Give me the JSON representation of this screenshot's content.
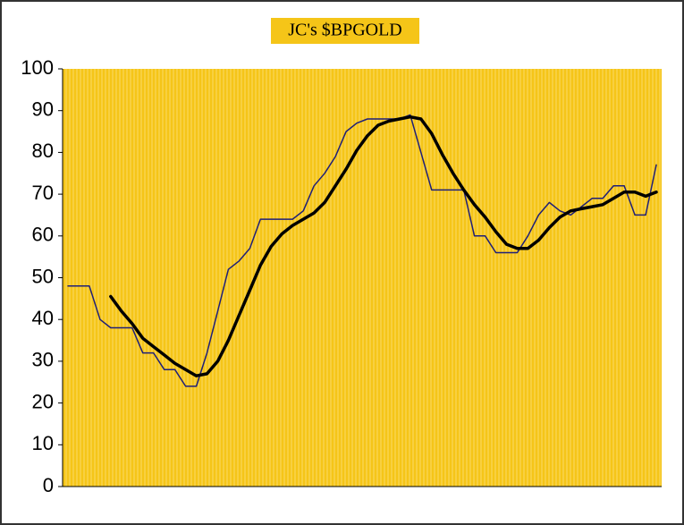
{
  "chart_data": {
    "type": "line",
    "title": "JC's $BPGOLD",
    "categories": [
      null,
      null,
      null,
      null,
      null,
      null,
      null,
      null,
      null,
      null,
      null,
      null,
      null,
      null,
      null,
      null,
      null,
      null,
      null,
      null,
      null,
      null,
      null,
      null,
      null,
      null,
      null,
      null,
      null,
      null,
      null,
      null,
      null,
      null,
      null,
      null,
      null,
      null,
      null,
      null,
      null,
      null,
      null,
      null,
      null,
      null,
      null,
      null,
      null,
      null,
      null,
      null,
      null,
      null,
      null,
      null
    ],
    "series": [
      {
        "color": "#1f1f78",
        "width": 1.5,
        "values": [
          48,
          48,
          48,
          40,
          38,
          38,
          38,
          32,
          32,
          28,
          28,
          24,
          24,
          32,
          42,
          52,
          54,
          57,
          64,
          64,
          64,
          64,
          66,
          72,
          75,
          79,
          85,
          87,
          88,
          88,
          88,
          88,
          89,
          80,
          71,
          71,
          71,
          71,
          60,
          60,
          56,
          56,
          56,
          60,
          65,
          68,
          66,
          65,
          67,
          69,
          69,
          72,
          72,
          65,
          65,
          77
        ]
      },
      {
        "color": "#000000",
        "width": 3.5,
        "values": [
          null,
          null,
          null,
          null,
          45.5,
          42,
          39,
          35.5,
          33.5,
          31.5,
          29.5,
          28,
          26.5,
          27,
          30,
          35,
          41,
          47,
          53,
          57.5,
          60.5,
          62.5,
          64,
          65.5,
          68,
          72,
          76,
          80.5,
          84,
          86.5,
          87.5,
          88,
          88.5,
          88,
          84.5,
          79.5,
          75,
          71,
          67.5,
          64.5,
          61,
          58,
          57,
          57,
          59,
          62,
          64.5,
          66,
          66.5,
          67,
          67.5,
          69,
          70.5,
          70.5,
          69.5,
          70.5
        ]
      }
    ],
    "ylim": [
      0,
      100
    ],
    "yticks": [
      0,
      10,
      20,
      30,
      40,
      50,
      60,
      70,
      80,
      90,
      100
    ],
    "plot_background": "#f5c518",
    "title_background": "#f5c518"
  }
}
